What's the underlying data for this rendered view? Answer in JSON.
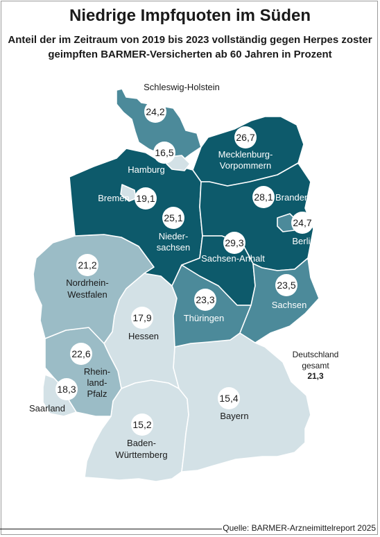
{
  "title": "Niedrige Impfquoten im Süden",
  "subtitle": "Anteil der im Zeitraum von 2019 bis 2023 vollständig gegen Herpes zoster geimpften BARMER-Versicherten ab 60 Jahren in Prozent",
  "colors": {
    "dark": "#0d5a6b",
    "medium": "#4c8a9a",
    "light": "#9bbcc6",
    "lightest": "#d3e1e6",
    "border": "#ffffff"
  },
  "states": [
    {
      "name": "Schleswig-Holstein",
      "value": "24,2",
      "color": "medium"
    },
    {
      "name": "Hamburg",
      "value": "16,5",
      "color": "lightest"
    },
    {
      "name": "Mecklenburg-Vorpommern",
      "label_lines": [
        "Mecklenburg-",
        "Vorpommern"
      ],
      "value": "26,7",
      "color": "dark"
    },
    {
      "name": "Bremen",
      "value": "19,1",
      "color": "lightest"
    },
    {
      "name": "Niedersachsen",
      "label_lines": [
        "Nieder-",
        "sachsen"
      ],
      "value": "25,1",
      "color": "dark"
    },
    {
      "name": "Brandenburg",
      "value": "28,1",
      "color": "dark"
    },
    {
      "name": "Berlin",
      "value": "24,7",
      "color": "medium"
    },
    {
      "name": "Sachsen-Anhalt",
      "value": "29,3",
      "color": "dark"
    },
    {
      "name": "Nordrhein-Westfalen",
      "label_lines": [
        "Nordrhein-",
        "Westfalen"
      ],
      "value": "21,2",
      "color": "light"
    },
    {
      "name": "Sachsen",
      "value": "23,5",
      "color": "medium"
    },
    {
      "name": "Thüringen",
      "value": "23,3",
      "color": "medium"
    },
    {
      "name": "Hessen",
      "value": "17,9",
      "color": "lightest"
    },
    {
      "name": "Rheinland-Pfalz",
      "label_lines": [
        "Rhein-",
        "land-",
        "Pfalz"
      ],
      "value": "22,6",
      "color": "light"
    },
    {
      "name": "Saarland",
      "value": "18,3",
      "color": "lightest"
    },
    {
      "name": "Bayern",
      "value": "15,4",
      "color": "lightest"
    },
    {
      "name": "Baden-Württemberg",
      "label_lines": [
        "Baden-",
        "Württemberg"
      ],
      "value": "15,2",
      "color": "lightest"
    }
  ],
  "total": {
    "label": "Deutschland gesamt",
    "value": "21,3"
  },
  "source": "Quelle: BARMER-Arzneimittelreport 2025"
}
